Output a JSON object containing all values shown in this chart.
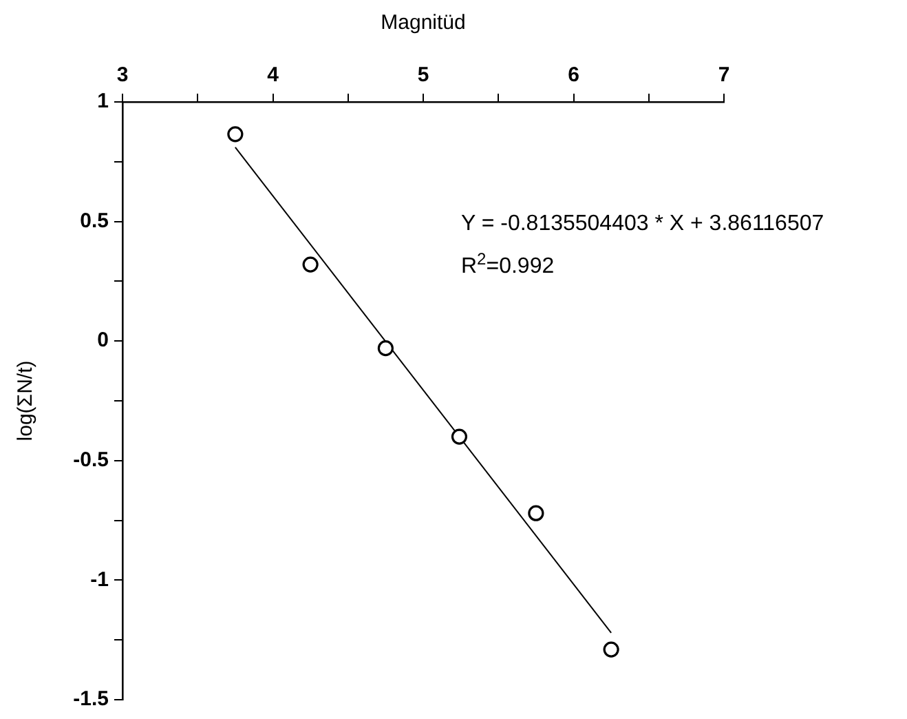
{
  "chart_data": {
    "type": "scatter",
    "xlabel": "Magnitüd",
    "ylabel": "log(ΣN/t)",
    "xlim": [
      3,
      7
    ],
    "xticks": [
      3,
      {
        "value": 3.5,
        "label": null
      },
      4,
      {
        "value": 4.5,
        "label": null
      },
      5,
      {
        "value": 5.5,
        "label": null
      },
      6,
      {
        "value": 6.5,
        "label": null
      },
      7
    ],
    "ylim": [
      -1.5,
      1
    ],
    "yticks": [
      -1.5,
      {
        "value": -1.25,
        "label": null
      },
      -1,
      {
        "value": -0.75,
        "label": null
      },
      -0.5,
      {
        "value": -0.25,
        "label": null
      },
      0,
      {
        "value": 0.25,
        "label": null
      },
      0.5,
      {
        "value": 0.75,
        "label": null
      },
      1
    ],
    "grid": false,
    "legend": false,
    "marker": "circle",
    "series": [
      {
        "color": "#000000",
        "x": [
          3.75,
          4.25,
          4.75,
          5.24,
          5.75,
          6.25
        ],
        "values": [
          0.865,
          0.32,
          -0.03,
          -0.4,
          -0.72,
          -1.29
        ]
      },
      {
        "type": "line",
        "color": "#000000",
        "marker": "none",
        "x": [
          3.75,
          6.25
        ],
        "values": [
          0.81,
          -1.22
        ]
      }
    ],
    "annotations": [
      "Y = -0.8135504403 * X + 3.86116507",
      "R$^{2}$=0.992"
    ]
  }
}
